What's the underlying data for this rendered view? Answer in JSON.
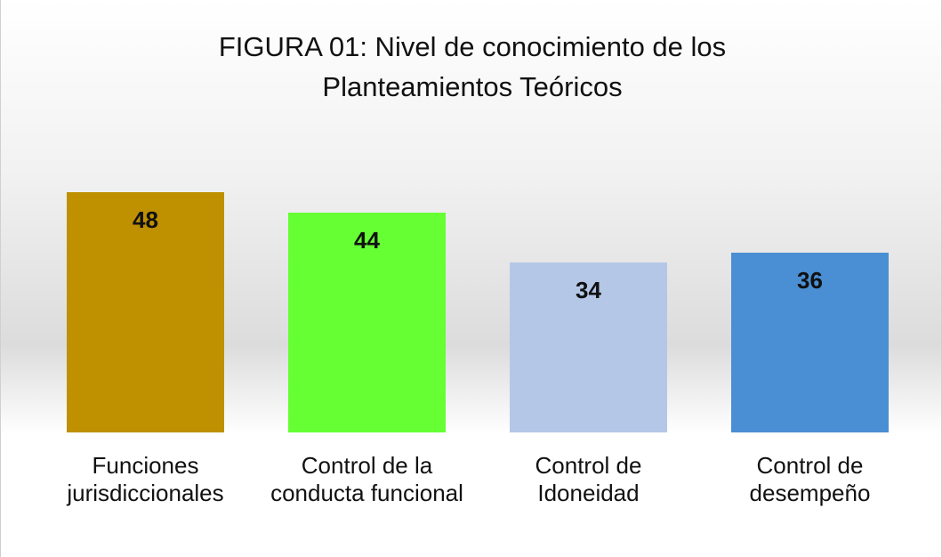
{
  "chart_data": {
    "type": "bar",
    "title": "FIGURA 01: Nivel de conocimiento de los Planteamientos Teóricos",
    "categories": [
      "Funciones jurisdiccionales",
      "Control de la conducta funcional",
      "Control de Idoneidad",
      "Control de desempeño"
    ],
    "values": [
      48,
      44,
      34,
      36
    ],
    "colors": [
      "#bf9000",
      "#66ff33",
      "#b4c7e7",
      "#4a8fd4"
    ],
    "ylim": [
      0,
      60
    ]
  }
}
